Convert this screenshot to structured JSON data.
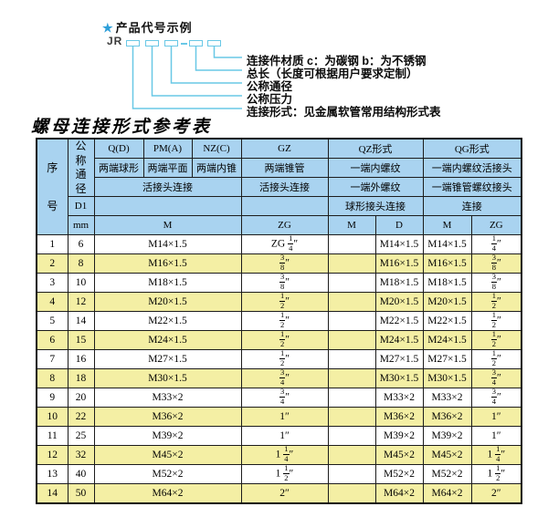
{
  "diagram": {
    "star": "★",
    "title": "产品代号示例",
    "prefix": "JR",
    "labels": [
      "连接件材质  c：为碳钢  b：为不锈钢",
      "总长（长度可根据用户要求定制）",
      "公称通径",
      "公称压力",
      "连接形式：见金属软管常用结构形式表"
    ]
  },
  "section_title": "螺母连接形式参考表",
  "table": {
    "header": {
      "xuhao": "序号",
      "tongjing": "公称通径",
      "d1": "D1",
      "mm": "mm",
      "col_q": "Q(D)",
      "col_pm": "PM(A)",
      "col_nz": "NZ(C)",
      "col_gz": "GZ",
      "col_qz": "QZ形式",
      "col_qg": "QG形式",
      "q_sub": "两端球形",
      "pm_sub": "两端平面",
      "nz_sub": "两端内锥",
      "gz_sub": "两端锥管",
      "qz_sub1": "一端内螺纹",
      "qg_sub1": "一端内螺纹活接头",
      "qpmnz_sub2": "活接头连接",
      "gz_sub2": "活接头连接",
      "qz_sub2": "一端外螺纹",
      "qg_sub2": "一端锥管螺纹接头",
      "qz_sub3": "球形接头连接",
      "qg_sub3": "连接",
      "m_merged": "M",
      "gz_unit": "ZG",
      "qz_m": "M",
      "qz_d": "D",
      "qg_m": "M",
      "qg_zg": "ZG"
    },
    "rows": [
      {
        "no": "1",
        "dn": "6",
        "m": "M14×1.5",
        "gz": "ZG 1/4″",
        "qz_m": "",
        "qz_d": "M14×1.5",
        "qg_m": "M14×1.5",
        "qg_zg": "1/4″"
      },
      {
        "no": "2",
        "dn": "8",
        "m": "M16×1.5",
        "gz": "3/8″",
        "qz_m": "",
        "qz_d": "M16×1.5",
        "qg_m": "M16×1.5",
        "qg_zg": "3/8″"
      },
      {
        "no": "3",
        "dn": "10",
        "m": "M18×1.5",
        "gz": "3/8″",
        "qz_m": "",
        "qz_d": "M18×1.5",
        "qg_m": "M18×1.5",
        "qg_zg": "3/8″"
      },
      {
        "no": "4",
        "dn": "12",
        "m": "M20×1.5",
        "gz": "1/2″",
        "qz_m": "",
        "qz_d": "M20×1.5",
        "qg_m": "M20×1.5",
        "qg_zg": "1/2″"
      },
      {
        "no": "5",
        "dn": "14",
        "m": "M22×1.5",
        "gz": "1/2″",
        "qz_m": "",
        "qz_d": "M22×1.5",
        "qg_m": "M22×1.5",
        "qg_zg": "1/2″"
      },
      {
        "no": "6",
        "dn": "15",
        "m": "M24×1.5",
        "gz": "1/2″",
        "qz_m": "",
        "qz_d": "M24×1.5",
        "qg_m": "M24×1.5",
        "qg_zg": "1/2″"
      },
      {
        "no": "7",
        "dn": "16",
        "m": "M27×1.5",
        "gz": "1/2″",
        "qz_m": "",
        "qz_d": "M27×1.5",
        "qg_m": "M27×1.5",
        "qg_zg": "1/2″"
      },
      {
        "no": "8",
        "dn": "18",
        "m": "M30×1.5",
        "gz": "3/4″",
        "qz_m": "",
        "qz_d": "M30×1.5",
        "qg_m": "M30×1.5",
        "qg_zg": "3/4″"
      },
      {
        "no": "9",
        "dn": "20",
        "m": "M33×2",
        "gz": "3/4″",
        "qz_m": "",
        "qz_d": "M33×2",
        "qg_m": "M33×2",
        "qg_zg": "3/4″"
      },
      {
        "no": "10",
        "dn": "22",
        "m": "M36×2",
        "gz": "1″",
        "qz_m": "",
        "qz_d": "M36×2",
        "qg_m": "M36×2",
        "qg_zg": "1″"
      },
      {
        "no": "11",
        "dn": "25",
        "m": "M39×2",
        "gz": "1″",
        "qz_m": "",
        "qz_d": "M39×2",
        "qg_m": "M39×2",
        "qg_zg": "1″"
      },
      {
        "no": "12",
        "dn": "32",
        "m": "M45×2",
        "gz": "1 1/4″",
        "qz_m": "",
        "qz_d": "M45×2",
        "qg_m": "M45×2",
        "qg_zg": "1 1/4″"
      },
      {
        "no": "13",
        "dn": "40",
        "m": "M52×2",
        "gz": "1 1/2″",
        "qz_m": "",
        "qz_d": "M52×2",
        "qg_m": "M52×2",
        "qg_zg": "1 1/2″"
      },
      {
        "no": "14",
        "dn": "50",
        "m": "M64×2",
        "gz": "2″",
        "qz_m": "",
        "qz_d": "M64×2",
        "qg_m": "M64×2",
        "qg_zg": "2″"
      }
    ]
  },
  "colors": {
    "header_blue": "#a9d3f0",
    "row_yellow": "#f4efa4",
    "row_white": "#ffffff",
    "line_cyan": "#69c8e6",
    "star_blue": "#2e9fd9",
    "grid_black": "#1c1c1c"
  }
}
